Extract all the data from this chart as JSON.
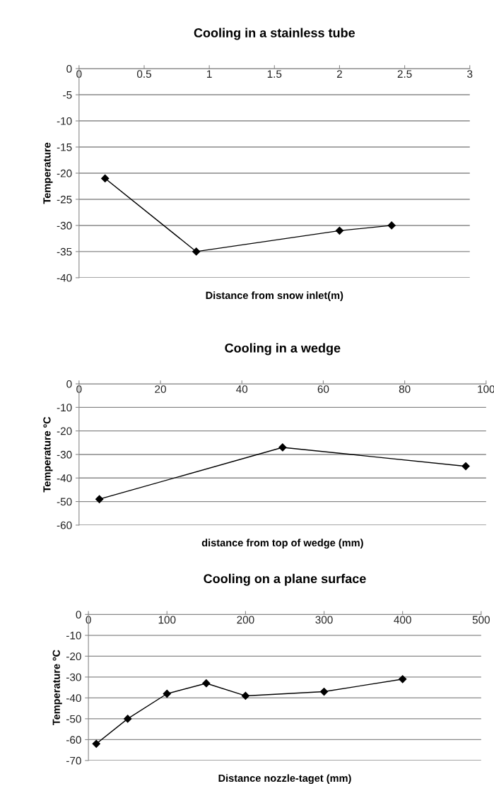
{
  "chart_data": [
    {
      "type": "line",
      "title": "Cooling in a stainless tube",
      "xlabel": "Distance from snow inlet(m)",
      "ylabel": "Temperature",
      "x": [
        0.2,
        0.9,
        2,
        2.4
      ],
      "series": [
        {
          "color": "#000000",
          "values": [
            -21,
            -35,
            -31,
            -30
          ]
        }
      ],
      "xlim": [
        0,
        3
      ],
      "xticks": [
        0,
        0.5,
        1,
        1.5,
        2,
        2.5,
        3
      ],
      "ylim": [
        -40,
        0
      ],
      "yticks": [
        -40,
        -35,
        -30,
        -25,
        -20,
        -15,
        -10,
        -5,
        0
      ],
      "grid": "y",
      "legend": false,
      "marker": "diamond",
      "line_style": "solid"
    },
    {
      "type": "line",
      "title": "Cooling in a wedge",
      "xlabel": "distance from top of wedge (mm)",
      "ylabel": "Temperature ºC",
      "x": [
        5,
        50,
        95
      ],
      "series": [
        {
          "color": "#000000",
          "values": [
            -49,
            -27,
            -35
          ]
        }
      ],
      "xlim": [
        0,
        100
      ],
      "xticks": [
        0,
        20,
        40,
        60,
        80,
        100
      ],
      "ylim": [
        -60,
        0
      ],
      "yticks": [
        -60,
        -50,
        -40,
        -30,
        -20,
        -10,
        0
      ],
      "grid": "y",
      "legend": false,
      "marker": "diamond",
      "line_style": "solid"
    },
    {
      "type": "line",
      "title": "Cooling on a plane surface",
      "xlabel": "Distance nozzle-taget (mm)",
      "ylabel": "Temperature ºC",
      "x": [
        10,
        50,
        100,
        150,
        200,
        300,
        400
      ],
      "series": [
        {
          "color": "#000000",
          "values": [
            -62,
            -50,
            -38,
            -33,
            -39,
            -37,
            -31
          ]
        }
      ],
      "xlim": [
        0,
        500
      ],
      "xticks": [
        0,
        100,
        200,
        300,
        400,
        500
      ],
      "ylim": [
        -70,
        0
      ],
      "yticks": [
        -70,
        -60,
        -50,
        -40,
        -30,
        -20,
        -10,
        0
      ],
      "grid": "y",
      "legend": false,
      "marker": "diamond",
      "line_style": "solid"
    }
  ]
}
